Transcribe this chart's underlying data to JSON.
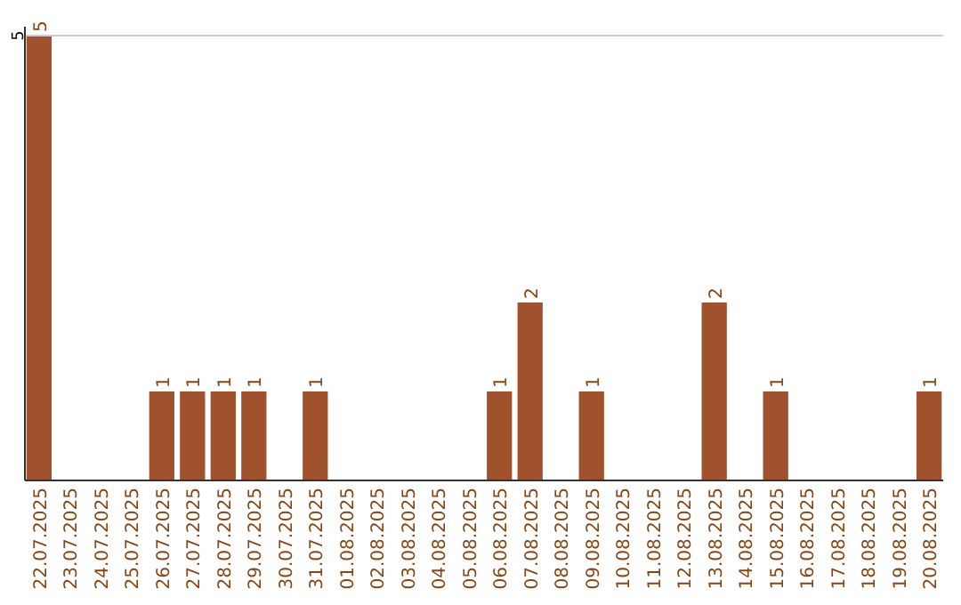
{
  "chart_data": {
    "type": "bar",
    "categories": [
      "22.07.2025",
      "23.07.2025",
      "24.07.2025",
      "25.07.2025",
      "26.07.2025",
      "27.07.2025",
      "28.07.2025",
      "29.07.2025",
      "30.07.2025",
      "31.07.2025",
      "01.08.2025",
      "02.08.2025",
      "03.08.2025",
      "04.08.2025",
      "05.08.2025",
      "06.08.2025",
      "07.08.2025",
      "08.08.2025",
      "09.08.2025",
      "10.08.2025",
      "11.08.2025",
      "12.08.2025",
      "13.08.2025",
      "14.08.2025",
      "15.08.2025",
      "16.08.2025",
      "17.08.2025",
      "18.08.2025",
      "19.08.2025",
      "20.08.2025"
    ],
    "values": [
      5,
      0,
      0,
      0,
      1,
      1,
      1,
      1,
      0,
      1,
      0,
      0,
      0,
      0,
      0,
      1,
      2,
      0,
      1,
      0,
      0,
      0,
      2,
      0,
      1,
      0,
      0,
      0,
      0,
      1
    ],
    "color": "#a0522d",
    "value_labels": [
      "5",
      null,
      null,
      null,
      "1",
      "1",
      "1",
      "1",
      null,
      "1",
      null,
      null,
      null,
      null,
      null,
      "1",
      "2",
      null,
      "1",
      null,
      null,
      null,
      "2",
      null,
      "1",
      null,
      null,
      null,
      null,
      "1"
    ],
    "ylim": [
      0,
      5
    ],
    "yticks": [
      5
    ],
    "ref_lines": [
      {
        "axis": "y",
        "value": 5,
        "color": "#cccccc"
      }
    ]
  }
}
